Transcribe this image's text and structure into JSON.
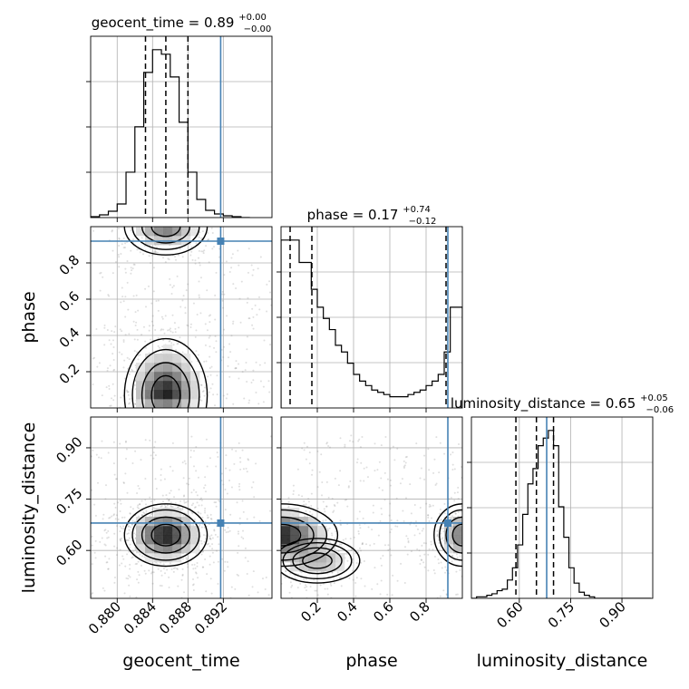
{
  "chart_data": {
    "type": "corner",
    "parameters": [
      "geocent_time",
      "phase",
      "luminosity_distance"
    ],
    "truths": {
      "geocent_time": 0.8917,
      "phase": 0.92,
      "luminosity_distance": 0.68
    },
    "truth_color": "#4682b4",
    "quantile_color": "#000000",
    "grid": true,
    "titles": [
      {
        "param": "geocent_time",
        "text": "geocent_time = 0.89",
        "sup": "+0.00",
        "sub": "−0.00"
      },
      {
        "param": "phase",
        "text": "phase = 0.17",
        "sup": "+0.74",
        "sub": "−0.12"
      },
      {
        "param": "luminosity_distance",
        "text": "luminosity_distance = 0.65",
        "sup": "+0.05",
        "sub": "−0.06"
      }
    ],
    "axes": {
      "geocent_time": {
        "label": "geocent_time",
        "range": [
          0.877,
          0.8975
        ],
        "ticks": [
          0.88,
          0.884,
          0.888,
          0.892
        ],
        "tick_labels": [
          "0.880",
          "0.884",
          "0.888",
          "0.892"
        ]
      },
      "phase": {
        "label": "phase",
        "range": [
          0.0,
          1.0
        ],
        "ticks": [
          0.2,
          0.4,
          0.6,
          0.8
        ],
        "tick_labels": [
          "0.2",
          "0.4",
          "0.6",
          "0.8"
        ]
      },
      "luminosity_distance": {
        "label": "luminosity_distance",
        "range": [
          0.46,
          0.99
        ],
        "ticks": [
          0.6,
          0.75,
          0.9
        ],
        "tick_labels": [
          "0.60",
          "0.75",
          "0.90"
        ]
      }
    },
    "histograms": {
      "geocent_time": {
        "edges": [
          0.877,
          0.878,
          0.879,
          0.88,
          0.881,
          0.882,
          0.883,
          0.884,
          0.885,
          0.886,
          0.887,
          0.888,
          0.889,
          0.89,
          0.891,
          0.892,
          0.893,
          0.894,
          0.895
        ],
        "counts": [
          1,
          3,
          7,
          15,
          50,
          100,
          160,
          185,
          180,
          155,
          105,
          50,
          20,
          8,
          4,
          2,
          1,
          0
        ],
        "quantiles": [
          0.8832,
          0.8855,
          0.888
        ]
      },
      "phase": {
        "edges": [
          0.0,
          0.0333,
          0.0667,
          0.1,
          0.1333,
          0.1667,
          0.2,
          0.2333,
          0.2667,
          0.3,
          0.3333,
          0.3667,
          0.4,
          0.4333,
          0.4667,
          0.5,
          0.5333,
          0.5667,
          0.6,
          0.6333,
          0.6667,
          0.7,
          0.7333,
          0.7667,
          0.8,
          0.8333,
          0.8667,
          0.9,
          0.9333,
          0.9667,
          1.0
        ],
        "counts": [
          75,
          75,
          75,
          65,
          65,
          53,
          45,
          40,
          35,
          28,
          25,
          20,
          15,
          12,
          10,
          8,
          7,
          6,
          5,
          5,
          5,
          6,
          7,
          8,
          10,
          12,
          15,
          25,
          45,
          45
        ],
        "quantiles": [
          0.05,
          0.17,
          0.91
        ]
      },
      "luminosity_distance": {
        "edges": [
          0.46,
          0.475,
          0.49,
          0.505,
          0.52,
          0.535,
          0.55,
          0.565,
          0.58,
          0.595,
          0.61,
          0.625,
          0.64,
          0.655,
          0.67,
          0.685,
          0.7,
          0.715,
          0.73,
          0.745,
          0.76,
          0.775,
          0.79,
          0.805,
          0.82,
          0.835,
          0.85,
          0.865,
          0.88,
          0.895,
          0.91,
          0.925,
          0.94,
          0.955,
          0.97,
          0.985
        ],
        "counts": [
          0,
          1,
          1,
          2,
          3,
          5,
          6,
          12,
          20,
          35,
          55,
          75,
          85,
          100,
          105,
          110,
          100,
          60,
          40,
          20,
          10,
          4,
          2,
          1,
          0,
          0,
          0,
          0,
          0,
          0,
          0,
          0,
          0,
          0,
          0
        ],
        "quantiles": [
          0.59,
          0.65,
          0.7
        ]
      }
    }
  }
}
